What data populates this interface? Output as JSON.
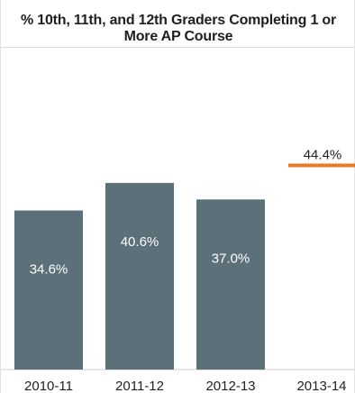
{
  "chart_data": {
    "type": "bar",
    "title": "% 10th, 11th, and 12th Graders Completing 1 or More AP Course",
    "categories": [
      "2010-11",
      "2011-12",
      "2012-13",
      "2013-14"
    ],
    "values": [
      34.6,
      40.6,
      37.0,
      44.4
    ],
    "data_labels": [
      "34.6%",
      "40.6%",
      "37.0%",
      "44.4%"
    ],
    "mark_styles": [
      "bar",
      "bar",
      "bar",
      "target-line"
    ],
    "xlabel": "",
    "ylabel": "",
    "ylim": [
      0,
      70
    ],
    "grid": false,
    "colors": {
      "bar": "#5b7078",
      "target": "#e8792b",
      "bar_label": "#ffffff",
      "target_label": "#222222"
    }
  }
}
